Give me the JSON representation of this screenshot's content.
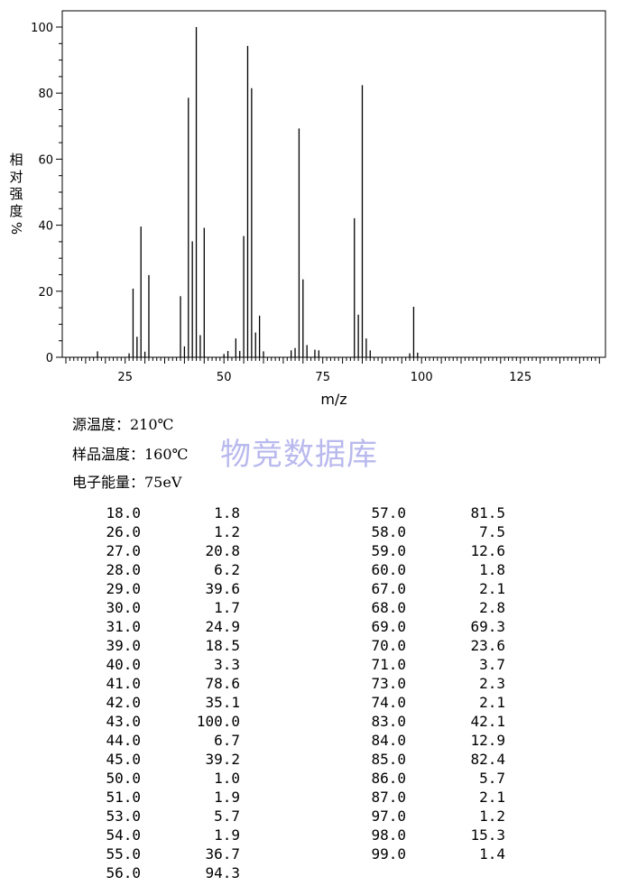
{
  "chart_data": {
    "type": "bar",
    "xlabel": "m/z",
    "ylabel": "相对强度%",
    "xlim": [
      10,
      145
    ],
    "ylim": [
      0,
      100
    ],
    "x_ticks": [
      25,
      50,
      75,
      100,
      125
    ],
    "y_ticks": [
      0,
      20,
      40,
      60,
      80,
      100
    ],
    "x": [
      18.0,
      26.0,
      27.0,
      28.0,
      29.0,
      30.0,
      31.0,
      39.0,
      40.0,
      41.0,
      42.0,
      43.0,
      44.0,
      45.0,
      50.0,
      51.0,
      53.0,
      54.0,
      55.0,
      56.0,
      57.0,
      58.0,
      59.0,
      60.0,
      67.0,
      68.0,
      69.0,
      70.0,
      71.0,
      73.0,
      74.0,
      83.0,
      84.0,
      85.0,
      86.0,
      87.0,
      97.0,
      98.0,
      99.0
    ],
    "values": [
      1.8,
      1.2,
      20.8,
      6.2,
      39.6,
      1.7,
      24.9,
      18.5,
      3.3,
      78.6,
      35.1,
      100.0,
      6.7,
      39.2,
      1.0,
      1.9,
      5.7,
      1.9,
      36.7,
      94.3,
      81.5,
      7.5,
      12.6,
      1.8,
      2.1,
      2.8,
      69.3,
      23.6,
      3.7,
      2.3,
      2.1,
      42.1,
      12.9,
      82.4,
      5.7,
      2.1,
      1.2,
      15.3,
      1.4
    ]
  },
  "conditions": {
    "source_temp": "源温度：210℃",
    "sample_temp": "样品温度：160℃",
    "electron_energy": "电子能量：75eV"
  },
  "watermark": "物竞数据库",
  "peaks_left": [
    {
      "mz": "18.0",
      "ab": "1.8"
    },
    {
      "mz": "26.0",
      "ab": "1.2"
    },
    {
      "mz": "27.0",
      "ab": "20.8"
    },
    {
      "mz": "28.0",
      "ab": "6.2"
    },
    {
      "mz": "29.0",
      "ab": "39.6"
    },
    {
      "mz": "30.0",
      "ab": "1.7"
    },
    {
      "mz": "31.0",
      "ab": "24.9"
    },
    {
      "mz": "39.0",
      "ab": "18.5"
    },
    {
      "mz": "40.0",
      "ab": "3.3"
    },
    {
      "mz": "41.0",
      "ab": "78.6"
    },
    {
      "mz": "42.0",
      "ab": "35.1"
    },
    {
      "mz": "43.0",
      "ab": "100.0"
    },
    {
      "mz": "44.0",
      "ab": "6.7"
    },
    {
      "mz": "45.0",
      "ab": "39.2"
    },
    {
      "mz": "50.0",
      "ab": "1.0"
    },
    {
      "mz": "51.0",
      "ab": "1.9"
    },
    {
      "mz": "53.0",
      "ab": "5.7"
    },
    {
      "mz": "54.0",
      "ab": "1.9"
    },
    {
      "mz": "55.0",
      "ab": "36.7"
    },
    {
      "mz": "56.0",
      "ab": "94.3"
    }
  ],
  "peaks_right": [
    {
      "mz": "57.0",
      "ab": "81.5"
    },
    {
      "mz": "58.0",
      "ab": "7.5"
    },
    {
      "mz": "59.0",
      "ab": "12.6"
    },
    {
      "mz": "60.0",
      "ab": "1.8"
    },
    {
      "mz": "67.0",
      "ab": "2.1"
    },
    {
      "mz": "68.0",
      "ab": "2.8"
    },
    {
      "mz": "69.0",
      "ab": "69.3"
    },
    {
      "mz": "70.0",
      "ab": "23.6"
    },
    {
      "mz": "71.0",
      "ab": "3.7"
    },
    {
      "mz": "73.0",
      "ab": "2.3"
    },
    {
      "mz": "74.0",
      "ab": "2.1"
    },
    {
      "mz": "83.0",
      "ab": "42.1"
    },
    {
      "mz": "84.0",
      "ab": "12.9"
    },
    {
      "mz": "85.0",
      "ab": "82.4"
    },
    {
      "mz": "86.0",
      "ab": "5.7"
    },
    {
      "mz": "87.0",
      "ab": "2.1"
    },
    {
      "mz": "97.0",
      "ab": "1.2"
    },
    {
      "mz": "98.0",
      "ab": "15.3"
    },
    {
      "mz": "99.0",
      "ab": "1.4"
    }
  ]
}
